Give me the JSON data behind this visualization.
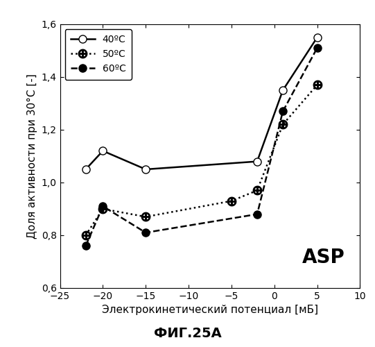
{
  "series": [
    {
      "label": "40ºC",
      "x": [
        -22,
        -20,
        -15,
        -2,
        1,
        5
      ],
      "y": [
        1.05,
        1.12,
        1.05,
        1.08,
        1.35,
        1.55
      ],
      "linestyle": "-",
      "marker": "o",
      "markerfacecolor": "white",
      "markeredgecolor": "black",
      "color": "black",
      "linewidth": 1.8,
      "markersize": 8
    },
    {
      "label": "50ºC",
      "x": [
        -22,
        -20,
        -15,
        -5,
        -2,
        1,
        5
      ],
      "y": [
        0.8,
        0.9,
        0.87,
        0.93,
        0.97,
        1.22,
        1.37
      ],
      "linestyle": ":",
      "marker": "$\\bigoplus$",
      "markerfacecolor": "black",
      "markeredgecolor": "black",
      "color": "black",
      "linewidth": 1.8,
      "markersize": 9
    },
    {
      "label": "60ºC",
      "x": [
        -22,
        -20,
        -15,
        -2,
        1,
        5
      ],
      "y": [
        0.76,
        0.91,
        0.81,
        0.88,
        1.27,
        1.51
      ],
      "linestyle": "--",
      "marker": "o",
      "markerfacecolor": "black",
      "markeredgecolor": "black",
      "color": "black",
      "linewidth": 1.8,
      "markersize": 8
    }
  ],
  "xlim": [
    -25,
    10
  ],
  "ylim": [
    0.6,
    1.6
  ],
  "xticks": [
    -25,
    -20,
    -15,
    -10,
    -5,
    0,
    5,
    10
  ],
  "yticks": [
    0.6,
    0.8,
    1.0,
    1.2,
    1.4,
    1.6
  ],
  "xlabel": "Электрокинетический потенциал [мБ]",
  "ylabel": "Доля активности при 30°C [-]",
  "annotation": "ASP",
  "fig_label": "ФИГ.25A",
  "legend_loc": "upper left",
  "background_color": "white"
}
